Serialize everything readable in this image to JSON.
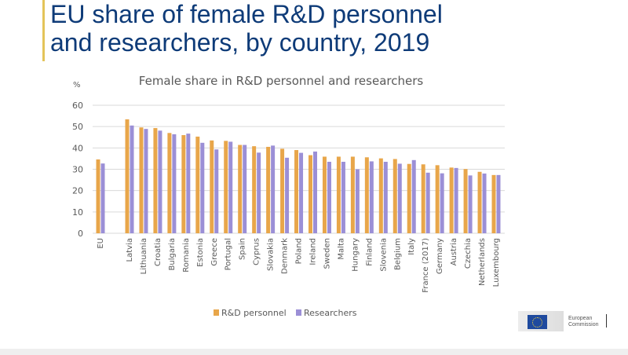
{
  "slide": {
    "title_line1": "EU share of female R&D personnel",
    "title_line2": "and researchers, by country, 2019",
    "logo_line1": "European",
    "logo_line2": "Commission",
    "logo_icon": "eu-flag-icon",
    "accent_color": "#e3c45a",
    "title_color": "#0e3b78"
  },
  "chart_data": {
    "type": "bar",
    "title": "Female share in R&D personnel and researchers",
    "ylabel": "%",
    "xlabel": "",
    "ylim": [
      0,
      60
    ],
    "yticks": [
      0,
      10,
      20,
      30,
      40,
      50,
      60
    ],
    "grid": true,
    "legend_position": "bottom",
    "categories": [
      "EU",
      "Latvia",
      "Lithuania",
      "Croatia",
      "Bulgaria",
      "Romania",
      "Estonia",
      "Greece",
      "Portugal",
      "Spain",
      "Cyprus",
      "Slovakia",
      "Denmark",
      "Poland",
      "Ireland",
      "Sweden",
      "Malta",
      "Hungary",
      "Finland",
      "Slovenia",
      "Belgium",
      "Italy",
      "France (2017)",
      "Germany",
      "Austria",
      "Czechia",
      "Netherlands",
      "Luxembourg"
    ],
    "series": [
      {
        "name": "R&D personnel",
        "color": "#e8a64a",
        "values": [
          34.6,
          53.4,
          49.6,
          49.3,
          47.0,
          46.0,
          45.3,
          43.5,
          43.3,
          41.4,
          40.8,
          40.5,
          39.6,
          39.0,
          36.6,
          35.9,
          35.9,
          35.9,
          35.6,
          35.1,
          34.8,
          32.5,
          32.3,
          31.9,
          30.8,
          30.1,
          28.8,
          27.3
        ]
      },
      {
        "name": "Researchers",
        "color": "#9b8fd6",
        "values": [
          32.7,
          50.5,
          48.9,
          48.1,
          46.4,
          46.7,
          42.4,
          39.3,
          42.9,
          41.4,
          37.8,
          41.1,
          35.4,
          37.7,
          38.3,
          33.5,
          33.5,
          30.0,
          33.7,
          33.5,
          32.6,
          34.3,
          28.4,
          28.1,
          30.6,
          27.1,
          28.0,
          27.3
        ]
      }
    ]
  }
}
